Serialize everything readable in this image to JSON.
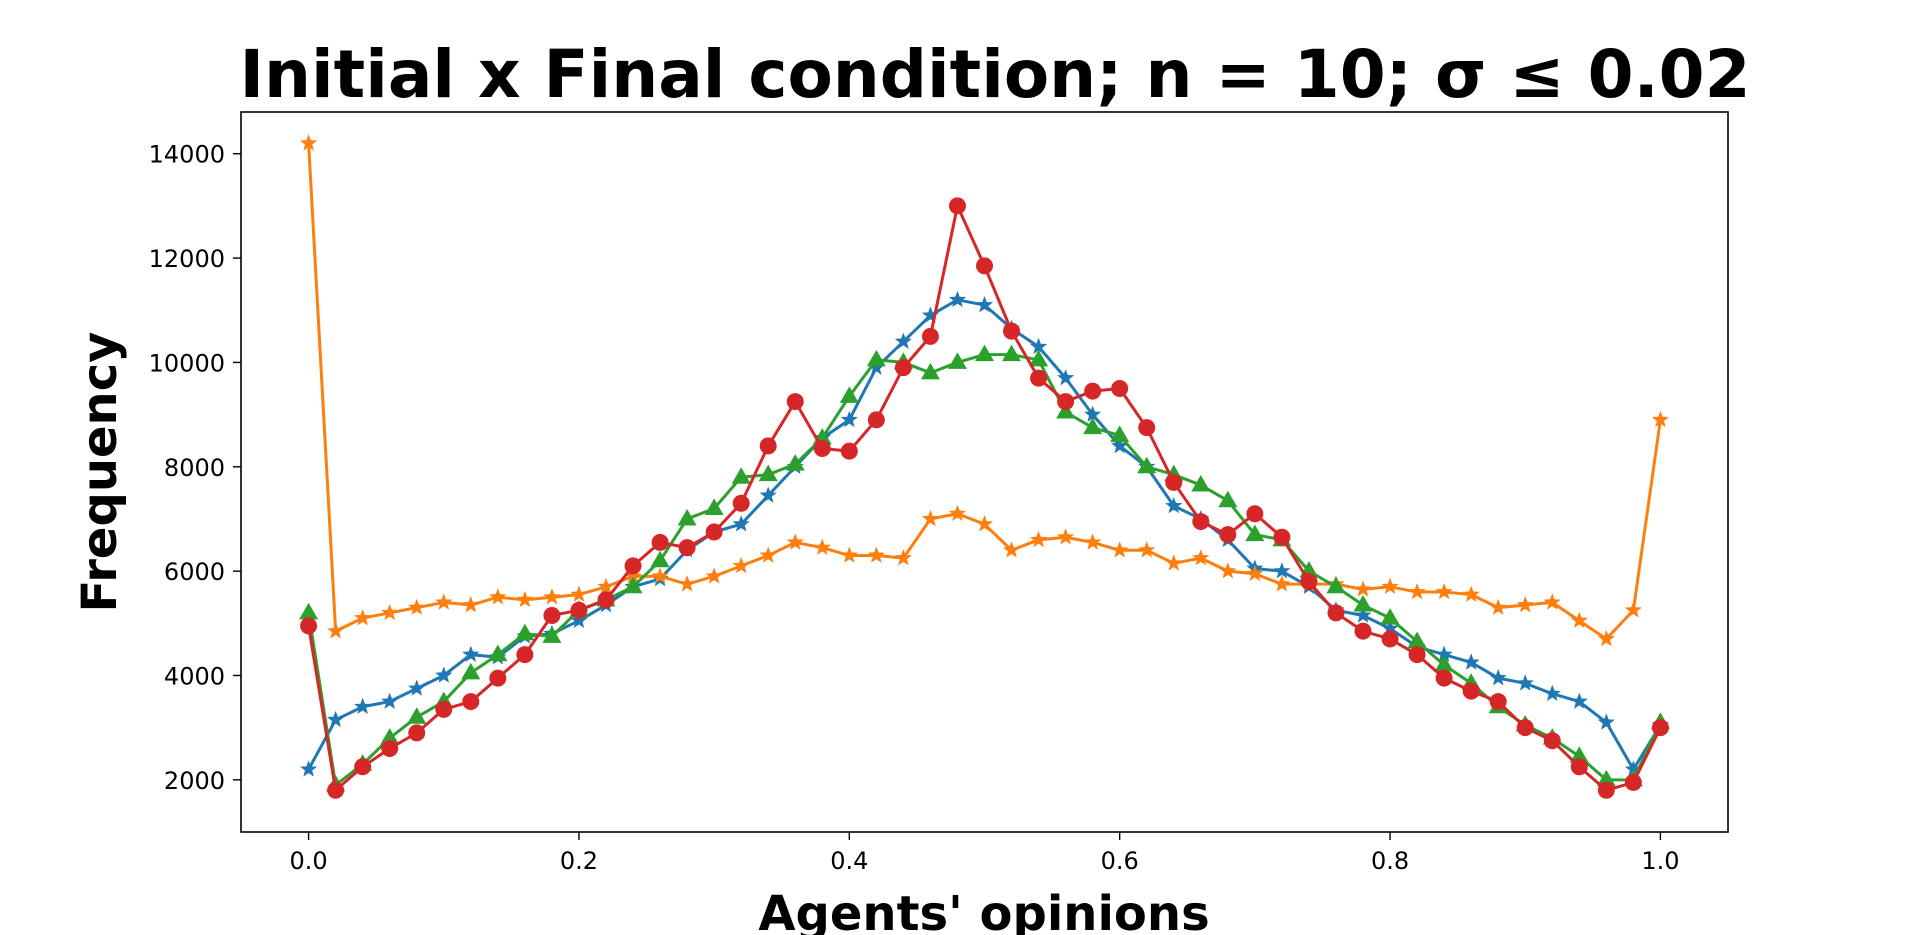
{
  "chart_data": {
    "type": "line",
    "title": "Initial x Final condition; n = 10; σ ≤ 0.02",
    "xlabel": "Agents' opinions",
    "ylabel": "Frequency",
    "xlim": [
      -0.05,
      1.05
    ],
    "ylim": [
      1000,
      14800
    ],
    "xticks": [
      "0.0",
      "0.2",
      "0.4",
      "0.6",
      "0.8",
      "1.0"
    ],
    "yticks": [
      "2000",
      "4000",
      "6000",
      "8000",
      "10000",
      "12000",
      "14000"
    ],
    "grid": false,
    "x": [
      0.0,
      0.02,
      0.04,
      0.06,
      0.08,
      0.1,
      0.12,
      0.14,
      0.16,
      0.18,
      0.2,
      0.22,
      0.24,
      0.26,
      0.28,
      0.3,
      0.32,
      0.34,
      0.36,
      0.38,
      0.4,
      0.42,
      0.44,
      0.46,
      0.48,
      0.5,
      0.52,
      0.54,
      0.56,
      0.58,
      0.6,
      0.62,
      0.64,
      0.66,
      0.68,
      0.7,
      0.72,
      0.74,
      0.76,
      0.78,
      0.8,
      0.82,
      0.84,
      0.86,
      0.88,
      0.9,
      0.92,
      0.94,
      0.96,
      0.98,
      1.0
    ],
    "series": [
      {
        "color": "#1f77b4",
        "marker": "star",
        "values": [
          2200,
          3150,
          3400,
          3500,
          3750,
          4000,
          4400,
          4350,
          4750,
          4800,
          5050,
          5350,
          5700,
          5850,
          6400,
          6750,
          6900,
          7450,
          8000,
          8550,
          8900,
          9900,
          10400,
          10900,
          11200,
          11100,
          10650,
          10300,
          9700,
          9000,
          8400,
          8000,
          7250,
          7000,
          6600,
          6050,
          6000,
          5700,
          5250,
          5150,
          4900,
          4550,
          4400,
          4250,
          3950,
          3850,
          3650,
          3500,
          3100,
          2200,
          3050
        ]
      },
      {
        "color": "#ff7f0e",
        "marker": "star",
        "values": [
          14200,
          4850,
          5100,
          5200,
          5300,
          5400,
          5350,
          5500,
          5450,
          5500,
          5550,
          5700,
          5900,
          5900,
          5750,
          5900,
          6100,
          6300,
          6550,
          6450,
          6300,
          6300,
          6250,
          7000,
          7100,
          6900,
          6400,
          6600,
          6650,
          6550,
          6400,
          6400,
          6150,
          6250,
          6000,
          5950,
          5750,
          5750,
          5750,
          5650,
          5700,
          5600,
          5600,
          5550,
          5300,
          5350,
          5400,
          5050,
          4700,
          5250,
          8900
        ]
      },
      {
        "color": "#2ca02c",
        "marker": "triangle",
        "values": [
          5200,
          1900,
          2300,
          2800,
          3200,
          3500,
          4050,
          4400,
          4800,
          4750,
          5250,
          5450,
          5700,
          6200,
          7000,
          7200,
          7800,
          7850,
          8050,
          8550,
          9350,
          10050,
          10000,
          9800,
          10000,
          10150,
          10150,
          10050,
          9050,
          8750,
          8600,
          8000,
          7850,
          7650,
          7350,
          6700,
          6600,
          6000,
          5700,
          5350,
          5100,
          4650,
          4200,
          3850,
          3400,
          3050,
          2800,
          2450,
          2000,
          2000,
          3100
        ]
      },
      {
        "color": "#d62728",
        "marker": "circle",
        "values": [
          4950,
          1800,
          2250,
          2600,
          2900,
          3350,
          3500,
          3950,
          4400,
          5150,
          5250,
          5450,
          6100,
          6550,
          6450,
          6750,
          7300,
          8400,
          9250,
          8350,
          8300,
          8900,
          9900,
          10500,
          13000,
          11850,
          10600,
          9700,
          9250,
          9450,
          9500,
          8750,
          7700,
          6950,
          6700,
          7100,
          6650,
          5800,
          5200,
          4850,
          4700,
          4400,
          3950,
          3700,
          3500,
          3000,
          2750,
          2250,
          1800,
          1950,
          3000
        ]
      }
    ]
  }
}
